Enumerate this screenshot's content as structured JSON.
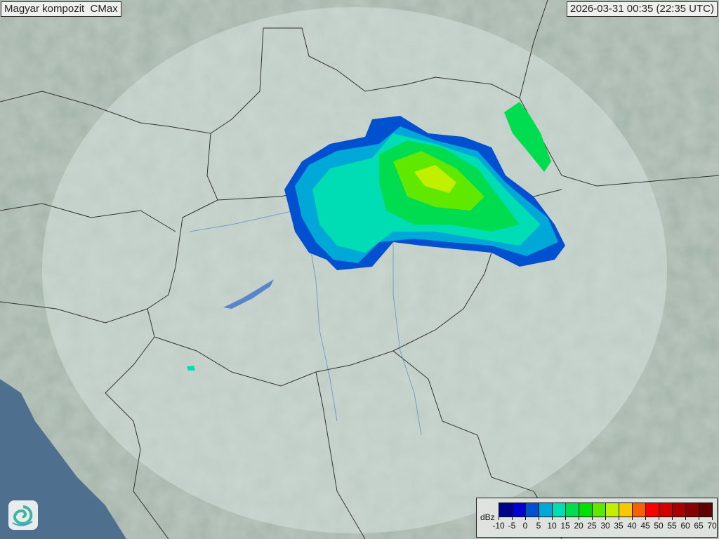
{
  "title": "Magyar kompozit  CMax",
  "timestamp": "2026-03-31 00:35 (22:35 UTC)",
  "legend": {
    "unit": "dBz",
    "labels": [
      "-10",
      "-5",
      "0",
      "5",
      "10",
      "15",
      "20",
      "25",
      "30",
      "35",
      "40",
      "45",
      "50",
      "55",
      "60",
      "65",
      "70"
    ],
    "colors": [
      "#000090",
      "#0000d0",
      "#0050d0",
      "#00a8d8",
      "#00dcb4",
      "#00dc50",
      "#00e000",
      "#60e800",
      "#c0f000",
      "#f8c800",
      "#f86000",
      "#f80000",
      "#d00000",
      "#a80000",
      "#880000",
      "#600000"
    ]
  },
  "logo": {
    "icon": "swirl-logo-icon"
  },
  "colors": {
    "terrain": "#9fb1a6",
    "coverage": "#c9d6d0",
    "sea": "#4f6f8f",
    "border": "#333333",
    "river": "#5a86c8"
  }
}
